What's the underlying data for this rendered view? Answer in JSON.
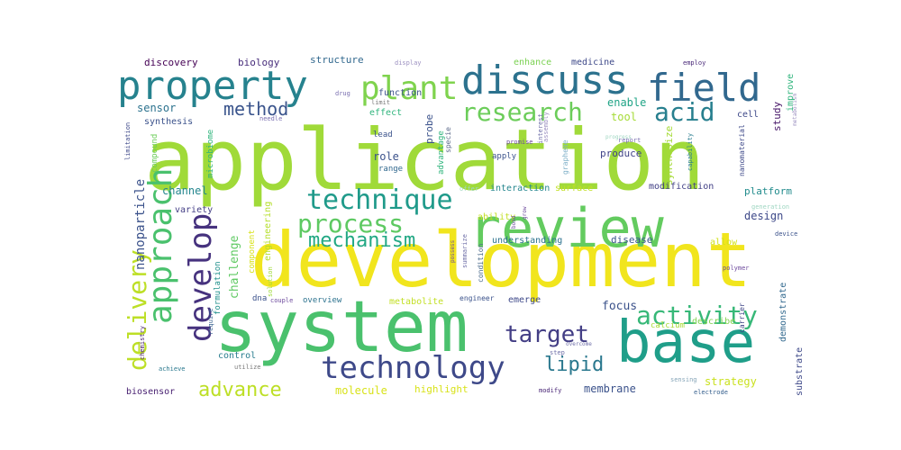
{
  "word_cloud": {
    "words": [
      {
        "text": "application",
        "color": "#a0da39"
      },
      {
        "text": "development",
        "color": "#f1e51d"
      },
      {
        "text": "system",
        "color": "#4ac16d"
      },
      {
        "text": "base",
        "color": "#1f9e89"
      },
      {
        "text": "review",
        "color": "#63cb5f"
      },
      {
        "text": "property",
        "color": "#26828e"
      },
      {
        "text": "discuss",
        "color": "#2c728e"
      },
      {
        "text": "field",
        "color": "#31688e"
      },
      {
        "text": "plant",
        "color": "#7fd34e"
      },
      {
        "text": "technique",
        "color": "#1f9a8a"
      },
      {
        "text": "technology",
        "color": "#3e4989"
      },
      {
        "text": "approach",
        "color": "#4ac16d"
      },
      {
        "text": "develop",
        "color": "#46327e"
      },
      {
        "text": "process",
        "color": "#5ec962"
      },
      {
        "text": "research",
        "color": "#6ccd5a"
      },
      {
        "text": "acid",
        "color": "#277f8e"
      },
      {
        "text": "activity",
        "color": "#37b878"
      },
      {
        "text": "delivery",
        "color": "#bddf26"
      },
      {
        "text": "target",
        "color": "#433e85"
      },
      {
        "text": "mechanism",
        "color": "#22a884"
      },
      {
        "text": "advance",
        "color": "#bddf26"
      },
      {
        "text": "method",
        "color": "#3a548c"
      },
      {
        "text": "lipid",
        "color": "#2a788e"
      },
      {
        "text": "nanoparticle",
        "color": "#3b528b"
      },
      {
        "text": "discovery",
        "color": "#440154"
      },
      {
        "text": "biology",
        "color": "#472d7b"
      },
      {
        "text": "structure",
        "color": "#31688e"
      },
      {
        "text": "enhance",
        "color": "#7ad151"
      },
      {
        "text": "medicine",
        "color": "#3e4989"
      },
      {
        "text": "display",
        "color": "#9b8fc0"
      },
      {
        "text": "employ",
        "color": "#482878"
      },
      {
        "text": "sensor",
        "color": "#2c728e"
      },
      {
        "text": "synthesis",
        "color": "#3b528b"
      },
      {
        "text": "microbiome",
        "color": "#2fb47c"
      },
      {
        "text": "compound",
        "color": "#6ccd5a"
      },
      {
        "text": "limitation",
        "color": "#3e4989"
      },
      {
        "text": "channel",
        "color": "#24868e"
      },
      {
        "text": "variety",
        "color": "#433e85"
      },
      {
        "text": "challenge",
        "color": "#5ec962"
      },
      {
        "text": "engineering",
        "color": "#b5de2b"
      },
      {
        "text": "component",
        "color": "#d8e219"
      },
      {
        "text": "formulation",
        "color": "#21918c"
      },
      {
        "text": "solution",
        "color": "#9fda3a"
      },
      {
        "text": "require",
        "color": "#355f8d"
      },
      {
        "text": "chemistry",
        "color": "#481f70"
      },
      {
        "text": "achieve",
        "color": "#2a788e"
      },
      {
        "text": "control",
        "color": "#287c8e"
      },
      {
        "text": "utilize",
        "color": "#7a7a7a"
      },
      {
        "text": "biosensor",
        "color": "#482071"
      },
      {
        "text": "molecule",
        "color": "#d8e219"
      },
      {
        "text": "highlight",
        "color": "#d8e219"
      },
      {
        "text": "modify",
        "color": "#482475"
      },
      {
        "text": "membrane",
        "color": "#3b528b"
      },
      {
        "text": "strategy",
        "color": "#cae11f"
      },
      {
        "text": "sensing",
        "color": "#86a5b8"
      },
      {
        "text": "electrode",
        "color": "#355f8d"
      },
      {
        "text": "substrate",
        "color": "#3e4989"
      },
      {
        "text": "demonstrate",
        "color": "#31688e"
      },
      {
        "text": "carrier",
        "color": "#404688"
      },
      {
        "text": "polymer",
        "color": "#6d4a9d"
      },
      {
        "text": "device",
        "color": "#3b528b"
      },
      {
        "text": "design",
        "color": "#3e4989"
      },
      {
        "text": "platform",
        "color": "#228c8d"
      },
      {
        "text": "generation",
        "color": "#9fd6c2"
      },
      {
        "text": "nanomaterial",
        "color": "#3e4989"
      },
      {
        "text": "cell",
        "color": "#3e4989"
      },
      {
        "text": "capability",
        "color": "#287c8e"
      },
      {
        "text": "metabolism",
        "color": "#9b8fc0"
      },
      {
        "text": "study",
        "color": "#481769"
      },
      {
        "text": "improve",
        "color": "#2fb47c"
      },
      {
        "text": "enable",
        "color": "#20a486"
      },
      {
        "text": "tool",
        "color": "#a5db36"
      },
      {
        "text": "synthesize",
        "color": "#a5db36"
      },
      {
        "text": "report",
        "color": "#7a6fb0"
      },
      {
        "text": "modification",
        "color": "#424086"
      },
      {
        "text": "surface",
        "color": "#c2df23"
      },
      {
        "text": "produce",
        "color": "#414487"
      },
      {
        "text": "apply",
        "color": "#3b528b"
      },
      {
        "text": "interaction",
        "color": "#24868e"
      },
      {
        "text": "ability",
        "color": "#c2df23"
      },
      {
        "text": "understanding",
        "color": "#2c728e"
      },
      {
        "text": "disease",
        "color": "#39568c"
      },
      {
        "text": "allow",
        "color": "#d2e21b"
      },
      {
        "text": "focus",
        "color": "#3b528b"
      },
      {
        "text": "calcium",
        "color": "#a8db34"
      },
      {
        "text": "describe",
        "color": "#7fd34e"
      },
      {
        "text": "emerge",
        "color": "#3e4989"
      },
      {
        "text": "role",
        "color": "#3b528b"
      },
      {
        "text": "range",
        "color": "#31688e"
      },
      {
        "text": "lead",
        "color": "#3b528b"
      },
      {
        "text": "effect",
        "color": "#2fb47c"
      },
      {
        "text": "function",
        "color": "#3b528b"
      },
      {
        "text": "limit",
        "color": "#7a7a7a"
      },
      {
        "text": "needle",
        "color": "#7a6fb0"
      },
      {
        "text": "advantage",
        "color": "#2fb47c"
      },
      {
        "text": "probe",
        "color": "#3b528b"
      },
      {
        "text": "specie",
        "color": "#5c6a8a"
      },
      {
        "text": "interest",
        "color": "#6f6fa8"
      },
      {
        "text": "promise",
        "color": "#6d4a9d"
      },
      {
        "text": "graphene",
        "color": "#7fb0c8"
      },
      {
        "text": "offer",
        "color": "#9fd6c2"
      },
      {
        "text": "assembly",
        "color": "#9b8fc0"
      },
      {
        "text": "drug",
        "color": "#7a6fb0"
      },
      {
        "text": "dna",
        "color": "#3b528b"
      },
      {
        "text": "couple",
        "color": "#6d4a9d"
      },
      {
        "text": "overview",
        "color": "#2c728e"
      },
      {
        "text": "metabolite",
        "color": "#c2df23"
      },
      {
        "text": "engineer",
        "color": "#3b528b"
      },
      {
        "text": "condition",
        "color": "#4a6a8a"
      },
      {
        "text": "summarize",
        "color": "#6f6fa8"
      },
      {
        "text": "possess",
        "color": "#6d4a9d"
      },
      {
        "text": "step",
        "color": "#6f6fa8"
      },
      {
        "text": "overcome",
        "color": "#6f6fa8"
      },
      {
        "text": "progress",
        "color": "#9fd6c2"
      },
      {
        "text": "bond",
        "color": "#6d4a9d"
      },
      {
        "text": "grow",
        "color": "#6d4a9d"
      }
    ]
  }
}
